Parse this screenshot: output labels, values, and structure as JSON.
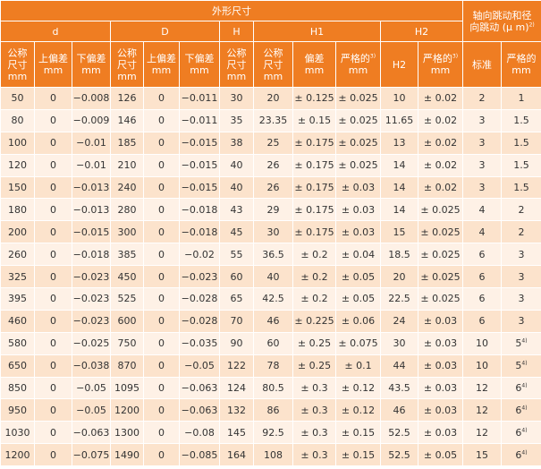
{
  "header": {
    "group": "外形尺寸",
    "side": {
      "text": "轴向跳动和径\n向跳动 (μ m)",
      "sup": "2)"
    },
    "sub_groups": [
      "d",
      "D",
      "H",
      "H1",
      "H2"
    ],
    "columns": [
      "公称\n尺寸\nmm",
      "上偏差\nmm",
      "下偏差\nmm",
      "公称\n尺寸\nmm",
      "上偏差\nmm",
      "下偏差\nmm",
      "公称\n尺寸\nmm",
      "公称\n尺寸\nmm",
      "偏差\nmm",
      {
        "text": "严格的",
        "sup": "3)",
        "unit": "mm"
      },
      "H2",
      {
        "text": "严格的",
        "sup": "3)",
        "unit": "mm"
      },
      "标准",
      "严格的\nmm"
    ]
  },
  "rows": [
    [
      "50",
      "0",
      "−0.008",
      "126",
      "0",
      "−0.011",
      "30",
      "20",
      "± 0.125",
      "± 0.025",
      "10",
      "± 0.02",
      "2",
      "1"
    ],
    [
      "80",
      "0",
      "−0.009",
      "146",
      "0",
      "−0.011",
      "35",
      "23.35",
      "± 0.15",
      "± 0.025",
      "11.65",
      "± 0.02",
      "3",
      "1.5"
    ],
    [
      "100",
      "0",
      "−0.01",
      "185",
      "0",
      "−0.015",
      "38",
      "25",
      "± 0.175",
      "± 0.025",
      "13",
      "± 0.02",
      "3",
      "1.5"
    ],
    [
      "120",
      "0",
      "−0.01",
      "210",
      "0",
      "−0.015",
      "40",
      "26",
      "± 0.175",
      "± 0.025",
      "14",
      "± 0.02",
      "3",
      "1.5"
    ],
    [
      "150",
      "0",
      "−0.013",
      "240",
      "0",
      "−0.015",
      "40",
      "26",
      "± 0.175",
      "± 0.03",
      "14",
      "± 0.02",
      "3",
      "1.5"
    ],
    [
      "180",
      "0",
      "−0.013",
      "280",
      "0",
      "−0.018",
      "43",
      "29",
      "± 0.175",
      "± 0.03",
      "14",
      "± 0.025",
      "4",
      "2"
    ],
    [
      "200",
      "0",
      "−0.015",
      "300",
      "0",
      "−0.018",
      "45",
      "30",
      "± 0.175",
      "± 0.03",
      "15",
      "± 0.025",
      "4",
      "2"
    ],
    [
      "260",
      "0",
      "−0.018",
      "385",
      "0",
      "−0.02",
      "55",
      "36.5",
      "± 0.2",
      "± 0.04",
      "18.5",
      "± 0.025",
      "6",
      "3"
    ],
    [
      "325",
      "0",
      "−0.023",
      "450",
      "0",
      "−0.023",
      "60",
      "40",
      "± 0.2",
      "± 0.05",
      "20",
      "± 0.025",
      "6",
      "3"
    ],
    [
      "395",
      "0",
      "−0.023",
      "525",
      "0",
      "−0.028",
      "65",
      "42.5",
      "± 0.2",
      "± 0.05",
      "22.5",
      "± 0.025",
      "6",
      "3"
    ],
    [
      "460",
      "0",
      "−0.023",
      "600",
      "0",
      "−0.028",
      "70",
      "46",
      "± 0.225",
      "± 0.06",
      "24",
      "± 0.03",
      "6",
      "3"
    ],
    [
      "580",
      "0",
      "−0.025",
      "750",
      "0",
      "−0.035",
      "90",
      "60",
      "± 0.25",
      "± 0.075",
      "30",
      "± 0.03",
      "10",
      {
        "text": "5",
        "sup": "4)"
      }
    ],
    [
      "650",
      "0",
      "−0.038",
      "870",
      "0",
      "−0.05",
      "122",
      "78",
      "± 0.25",
      "± 0.1",
      "44",
      "± 0.03",
      "10",
      {
        "text": "5",
        "sup": "4)"
      }
    ],
    [
      "850",
      "0",
      "−0.05",
      "1095",
      "0",
      "−0.063",
      "124",
      "80.5",
      "± 0.3",
      "± 0.12",
      "43.5",
      "± 0.03",
      "12",
      {
        "text": "6",
        "sup": "4)"
      }
    ],
    [
      "950",
      "0",
      "−0.05",
      "1200",
      "0",
      "−0.063",
      "132",
      "86",
      "± 0.3",
      "± 0.12",
      "46",
      "± 0.03",
      "12",
      {
        "text": "6",
        "sup": "4)"
      }
    ],
    [
      "1030",
      "0",
      "−0.063",
      "1300",
      "0",
      "−0.08",
      "145",
      "92.5",
      "± 0.3",
      "± 0.15",
      "52.5",
      "± 0.03",
      "12",
      {
        "text": "6",
        "sup": "4)"
      }
    ],
    [
      "1200",
      "0",
      "−0.075",
      "1490",
      "0",
      "−0.085",
      "164",
      "108",
      "± 0.3",
      "± 0.15",
      "52.5",
      "± 0.05",
      "15",
      {
        "text": "6",
        "sup": "4)"
      }
    ]
  ]
}
